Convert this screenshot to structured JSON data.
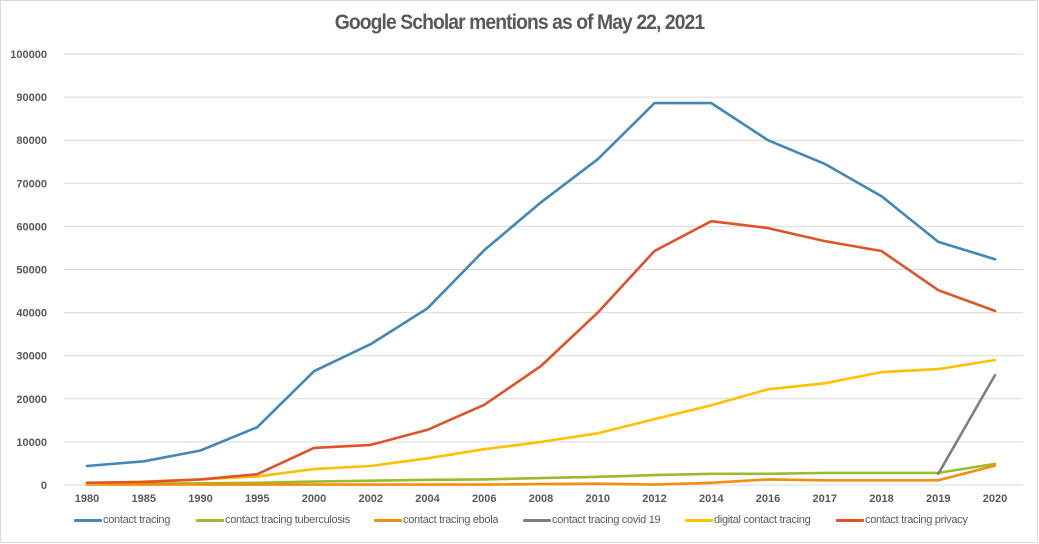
{
  "chart_data": {
    "type": "line",
    "title": "Google Scholar mentions as of May 22, 2021",
    "xlabel": "",
    "ylabel": "",
    "ylim": [
      0,
      100000
    ],
    "yticks": [
      "0",
      "10000",
      "20000",
      "30000",
      "40000",
      "50000",
      "60000",
      "70000",
      "80000",
      "90000",
      "100000"
    ],
    "grid": true,
    "legend_position": "bottom",
    "categories": [
      "1980",
      "1985",
      "1990",
      "1995",
      "2000",
      "2002",
      "2004",
      "2006",
      "2008",
      "2010",
      "2012",
      "2014",
      "2016",
      "2017",
      "2018",
      "2019",
      "2020"
    ],
    "series": [
      {
        "name": "contact tracing",
        "color": "#4287B5",
        "values": [
          4400,
          5500,
          8000,
          13400,
          26400,
          32700,
          41000,
          54500,
          65600,
          75600,
          88600,
          88600,
          80000,
          74500,
          67000,
          56400,
          52400
        ]
      },
      {
        "name": "contact tracing tuberculosis",
        "color": "#9BBB2C",
        "values": [
          200,
          300,
          400,
          500,
          800,
          1000,
          1200,
          1300,
          1600,
          1900,
          2300,
          2600,
          2600,
          2800,
          2800,
          2800,
          4900
        ]
      },
      {
        "name": "contact tracing ebola",
        "color": "#F28E0C",
        "values": [
          100,
          100,
          100,
          100,
          100,
          100,
          100,
          100,
          200,
          300,
          100,
          500,
          1300,
          1100,
          1100,
          1100,
          4500
        ]
      },
      {
        "name": "contact tracing covid 19",
        "color": "#7F7F7F",
        "values": [
          null,
          null,
          null,
          null,
          null,
          null,
          null,
          null,
          null,
          null,
          null,
          null,
          null,
          null,
          null,
          2600,
          25500
        ]
      },
      {
        "name": "digital contact tracing",
        "color": "#FFC000",
        "values": [
          300,
          800,
          1300,
          2000,
          3700,
          4400,
          6200,
          8300,
          10000,
          12000,
          15300,
          18500,
          22200,
          23600,
          26200,
          26900,
          29000
        ]
      },
      {
        "name": "contact tracing privacy",
        "color": "#E0532A",
        "values": [
          500,
          700,
          1300,
          2500,
          8600,
          9300,
          12800,
          18600,
          27600,
          40000,
          54300,
          61200,
          59600,
          56600,
          54300,
          45200,
          40400
        ]
      }
    ]
  }
}
